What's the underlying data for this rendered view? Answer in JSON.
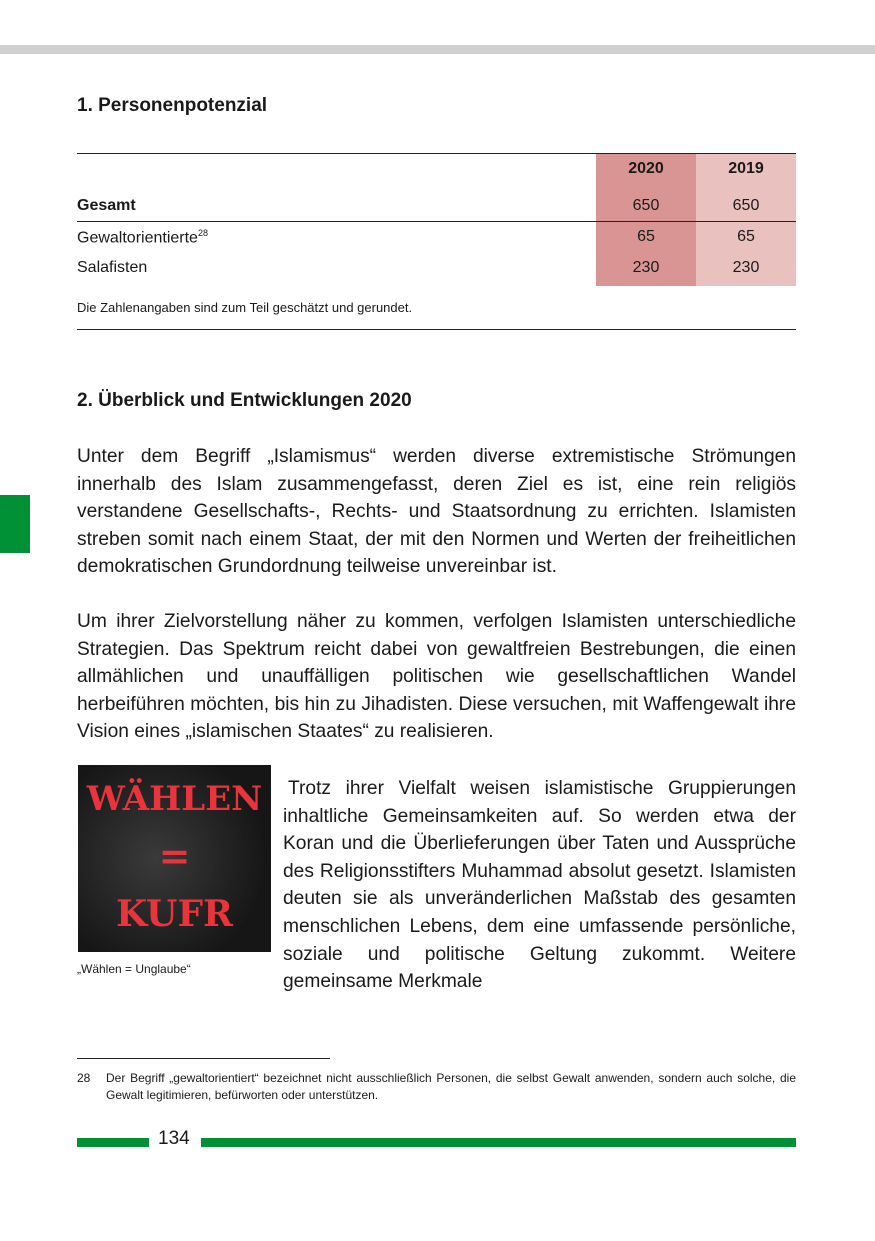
{
  "section1": {
    "heading": "1. Personenpotenzial",
    "table": {
      "columns": [
        "2020",
        "2019"
      ],
      "rows": [
        {
          "label": "Gesamt",
          "footnote": "",
          "values": [
            "650",
            "650"
          ],
          "bold": true
        },
        {
          "label": "Gewaltorientierte",
          "footnote": "28",
          "values": [
            "65",
            "65"
          ]
        },
        {
          "label": "Salafisten",
          "footnote": "",
          "values": [
            "230",
            "230"
          ]
        }
      ],
      "note": "Die Zahlenangaben sind zum Teil geschätzt und gerundet.",
      "colors": {
        "col_2020": "#d99593",
        "col_2019": "#e9c1be"
      }
    }
  },
  "section2": {
    "heading": "2. Überblick und Entwicklungen 2020",
    "paragraphs": [
      "Unter dem Begriff „Islamismus“ werden diverse extremistische Strömungen innerhalb des Islam zusammengefasst, deren Ziel es ist, eine rein religiös verstandene Gesellschafts-, Rechts- und Staatsordnung zu errichten. Islamisten streben somit nach einem Staat, der mit den Normen und Werten der freiheitlichen demokratischen Grundordnung teilweise unvereinbar ist.",
      "Um ihrer Zielvorstellung näher zu kommen, verfolgen Islamisten unterschiedliche Strategien. Das Spektrum reicht dabei von gewaltfreien Bestrebungen, die einen allmählichen und unauffälligen politischen wie gesellschaftlichen Wandel herbeiführen möchten, bis hin zu Jihadisten. Diese versuchen, mit Waffengewalt ihre Vision eines „islamischen Staates“ zu realisieren.",
      "Trotz ihrer Vielfalt weisen islamistische Gruppierungen inhaltliche Gemeinsamkeiten auf. So werden etwa der Koran und die Überlieferungen über Taten und Aussprüche des Religionsstifters Muhammad absolut gesetzt. Islamisten deuten sie als unveränderlichen Maßstab des gesamten menschlichen Lebens, dem eine umfassende persönliche, soziale und politische Geltung zukommt. Weitere gemeinsame Merkmale"
    ],
    "image": {
      "lettering": [
        "WÄHLEN",
        "=",
        "KUFR"
      ],
      "caption": "„Wählen = Unglaube“"
    }
  },
  "footnote": {
    "number": "28",
    "text": "Der Begriff „gewaltorientiert“ bezeichnet nicht ausschließlich Personen, die selbst Gewalt anwenden, sondern auch solche, die Gewalt legitimieren, befürworten oder unterstützen."
  },
  "footer": {
    "page_number": "134",
    "accent": "#009036"
  }
}
